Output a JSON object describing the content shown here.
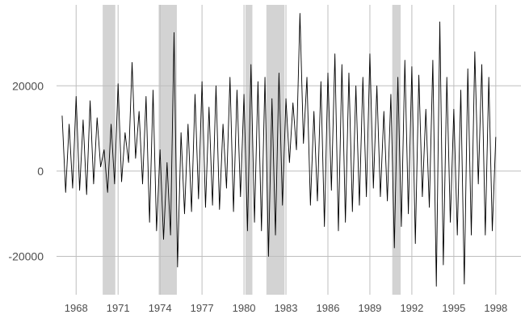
{
  "chart_data": {
    "type": "line",
    "title": "",
    "xlabel": "",
    "ylabel": "",
    "xlim": [
      1966.6,
      1999.8
    ],
    "ylim": [
      -29000,
      39000
    ],
    "y_ticks": [
      -20000,
      0,
      20000
    ],
    "y_tick_labels": [
      "-20000",
      "0",
      "20000"
    ],
    "x_ticks": [
      1968,
      1971,
      1974,
      1977,
      1980,
      1983,
      1986,
      1989,
      1992,
      1995,
      1998
    ],
    "x_tick_labels": [
      "1968",
      "1971",
      "1974",
      "1977",
      "1980",
      "1983",
      "1986",
      "1989",
      "1992",
      "1995",
      "1998"
    ],
    "grid": true,
    "legend": "none",
    "colors": {
      "line": "#000000",
      "grid": "#bebebe",
      "recession": "#d3d3d3",
      "background": "#ffffff"
    },
    "shaded_periods": [
      [
        1969.9,
        1970.8
      ],
      [
        1973.9,
        1975.2
      ],
      [
        1980.1,
        1980.6
      ],
      [
        1981.6,
        1982.9
      ],
      [
        1990.6,
        1991.2
      ]
    ],
    "series": [
      {
        "x": [
          1967.0,
          1967.25,
          1967.5,
          1967.75,
          1968.0,
          1968.25,
          1968.5,
          1968.75,
          1969.0,
          1969.25,
          1969.5,
          1969.75,
          1970.0,
          1970.25,
          1970.5,
          1970.75,
          1971.0,
          1971.25,
          1971.5,
          1971.75,
          1972.0,
          1972.25,
          1972.5,
          1972.75,
          1973.0,
          1973.25,
          1973.5,
          1973.75,
          1974.0,
          1974.25,
          1974.5,
          1974.75,
          1975.0,
          1975.25,
          1975.5,
          1975.75,
          1976.0,
          1976.25,
          1976.5,
          1976.75,
          1977.0,
          1977.25,
          1977.5,
          1977.75,
          1978.0,
          1978.25,
          1978.5,
          1978.75,
          1979.0,
          1979.25,
          1979.5,
          1979.75,
          1980.0,
          1980.25,
          1980.5,
          1980.75,
          1981.0,
          1981.25,
          1981.5,
          1981.75,
          1982.0,
          1982.25,
          1982.5,
          1982.75,
          1983.0,
          1983.25,
          1983.5,
          1983.75,
          1984.0,
          1984.25,
          1984.5,
          1984.75,
          1985.0,
          1985.25,
          1985.5,
          1985.75,
          1986.0,
          1986.25,
          1986.5,
          1986.75,
          1987.0,
          1987.25,
          1987.5,
          1987.75,
          1988.0,
          1988.25,
          1988.5,
          1988.75,
          1989.0,
          1989.25,
          1989.5,
          1989.75,
          1990.0,
          1990.25,
          1990.5,
          1990.75,
          1991.0,
          1991.25,
          1991.5,
          1991.75,
          1992.0,
          1992.25,
          1992.5,
          1992.75,
          1993.0,
          1993.25,
          1993.5,
          1993.75,
          1994.0,
          1994.25,
          1994.5,
          1994.75,
          1995.0,
          1995.25,
          1995.5,
          1995.75,
          1996.0,
          1996.25,
          1996.5,
          1996.75,
          1997.0,
          1997.25,
          1997.5,
          1997.75,
          1998.0
        ],
        "values": [
          13000,
          -5000,
          11000,
          -4000,
          17500,
          -4500,
          12000,
          -5500,
          16500,
          -3000,
          12500,
          1000,
          5000,
          -5000,
          11000,
          -3000,
          20500,
          -2500,
          9000,
          2000,
          25500,
          3000,
          14000,
          -3000,
          17500,
          -12000,
          19000,
          -14000,
          5000,
          -16000,
          2000,
          -15000,
          32500,
          -22500,
          9000,
          -10000,
          11000,
          -9500,
          18000,
          -6500,
          21000,
          -8500,
          15000,
          -8000,
          20000,
          -9000,
          11000,
          -4000,
          22000,
          -9500,
          19000,
          -6000,
          18000,
          -14000,
          25000,
          -12000,
          21000,
          -14000,
          22000,
          -20000,
          17000,
          -15000,
          23000,
          -8000,
          17000,
          2000,
          16000,
          5000,
          37000,
          6500,
          22000,
          -8000,
          14000,
          -7000,
          21000,
          -13000,
          23000,
          -4500,
          27500,
          -14000,
          25000,
          -12000,
          23000,
          -9500,
          20000,
          -8000,
          22000,
          -6000,
          27500,
          -4000,
          20000,
          -6000,
          14000,
          -7000,
          18000,
          -18000,
          22000,
          -13000,
          26000,
          -10000,
          24500,
          -17000,
          22500,
          -6000,
          14500,
          -8500,
          26000,
          -27000,
          35000,
          -22000,
          22000,
          -12000,
          14500,
          -15000,
          19000,
          -26500,
          24000,
          -15000,
          28000,
          -3000,
          25000,
          -15000,
          22000,
          -14000,
          8000
        ]
      }
    ]
  }
}
